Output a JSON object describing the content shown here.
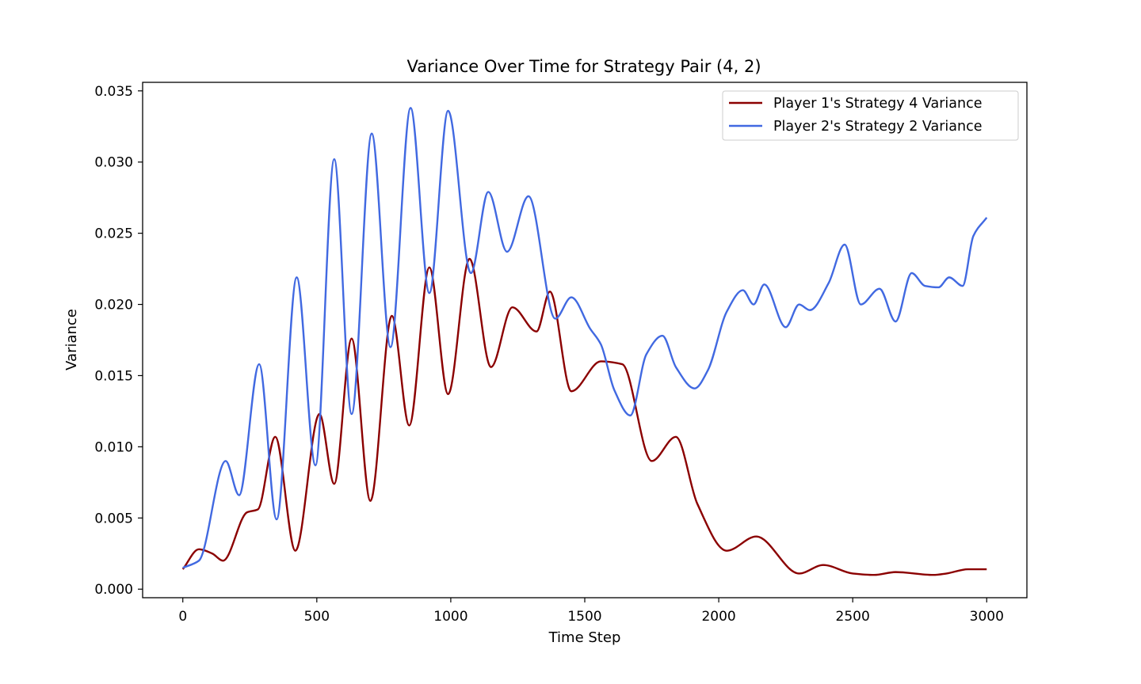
{
  "chart_data": {
    "type": "line",
    "title": "Variance Over Time for Strategy Pair (4, 2)",
    "xlabel": "Time Step",
    "ylabel": "Variance",
    "xlim": [
      -150,
      3150
    ],
    "ylim": [
      -0.0006,
      0.0356
    ],
    "xticks": [
      0,
      500,
      1000,
      1500,
      2000,
      2500,
      3000
    ],
    "xtick_labels": [
      "0",
      "500",
      "1000",
      "1500",
      "2000",
      "2500",
      "3000"
    ],
    "yticks": [
      0.0,
      0.005,
      0.01,
      0.015,
      0.02,
      0.025,
      0.03,
      0.035
    ],
    "ytick_labels": [
      "0.000",
      "0.005",
      "0.010",
      "0.015",
      "0.020",
      "0.025",
      "0.030",
      "0.035"
    ],
    "grid": false,
    "legend_position": "top-right",
    "series": [
      {
        "name": "Player 1's Strategy 4 Variance",
        "color": "#8b0000",
        "points": [
          [
            0,
            0.0014
          ],
          [
            60,
            0.0028
          ],
          [
            110,
            0.0025
          ],
          [
            150,
            0.002
          ],
          [
            240,
            0.0054
          ],
          [
            280,
            0.0056
          ],
          [
            345,
            0.0107
          ],
          [
            420,
            0.0027
          ],
          [
            510,
            0.0123
          ],
          [
            565,
            0.0074
          ],
          [
            630,
            0.0176
          ],
          [
            700,
            0.0062
          ],
          [
            780,
            0.0192
          ],
          [
            845,
            0.0115
          ],
          [
            920,
            0.0226
          ],
          [
            990,
            0.0137
          ],
          [
            1070,
            0.0232
          ],
          [
            1150,
            0.0156
          ],
          [
            1230,
            0.0198
          ],
          [
            1320,
            0.0181
          ],
          [
            1370,
            0.0209
          ],
          [
            1450,
            0.0139
          ],
          [
            1560,
            0.016
          ],
          [
            1640,
            0.0158
          ],
          [
            1750,
            0.009
          ],
          [
            1840,
            0.0107
          ],
          [
            1920,
            0.006
          ],
          [
            2030,
            0.0027
          ],
          [
            2140,
            0.0037
          ],
          [
            2300,
            0.0011
          ],
          [
            2390,
            0.0017
          ],
          [
            2500,
            0.0011
          ],
          [
            2580,
            0.001
          ],
          [
            2660,
            0.0012
          ],
          [
            2800,
            0.001
          ],
          [
            2850,
            0.0011
          ],
          [
            2930,
            0.0014
          ],
          [
            3000,
            0.0014
          ]
        ]
      },
      {
        "name": "Player 2's Strategy 2 Variance",
        "color": "#4169e1",
        "points": [
          [
            0,
            0.0015
          ],
          [
            60,
            0.002
          ],
          [
            160,
            0.009
          ],
          [
            210,
            0.0066
          ],
          [
            285,
            0.0158
          ],
          [
            350,
            0.0049
          ],
          [
            425,
            0.0219
          ],
          [
            495,
            0.0087
          ],
          [
            565,
            0.0302
          ],
          [
            630,
            0.0123
          ],
          [
            705,
            0.032
          ],
          [
            775,
            0.017
          ],
          [
            850,
            0.0338
          ],
          [
            920,
            0.0208
          ],
          [
            990,
            0.0336
          ],
          [
            1075,
            0.0222
          ],
          [
            1140,
            0.0279
          ],
          [
            1210,
            0.0237
          ],
          [
            1290,
            0.0276
          ],
          [
            1390,
            0.019
          ],
          [
            1450,
            0.0205
          ],
          [
            1520,
            0.0183
          ],
          [
            1560,
            0.0172
          ],
          [
            1610,
            0.014
          ],
          [
            1670,
            0.0122
          ],
          [
            1730,
            0.0165
          ],
          [
            1790,
            0.0178
          ],
          [
            1840,
            0.0156
          ],
          [
            1910,
            0.0141
          ],
          [
            1960,
            0.0154
          ],
          [
            2030,
            0.0195
          ],
          [
            2090,
            0.021
          ],
          [
            2130,
            0.02
          ],
          [
            2170,
            0.0214
          ],
          [
            2250,
            0.0184
          ],
          [
            2300,
            0.02
          ],
          [
            2340,
            0.0196
          ],
          [
            2410,
            0.0215
          ],
          [
            2470,
            0.0242
          ],
          [
            2530,
            0.02
          ],
          [
            2600,
            0.0211
          ],
          [
            2660,
            0.0188
          ],
          [
            2720,
            0.0222
          ],
          [
            2770,
            0.0213
          ],
          [
            2820,
            0.0212
          ],
          [
            2860,
            0.0219
          ],
          [
            2910,
            0.0213
          ],
          [
            2950,
            0.0248
          ],
          [
            3000,
            0.0261
          ]
        ]
      }
    ]
  }
}
